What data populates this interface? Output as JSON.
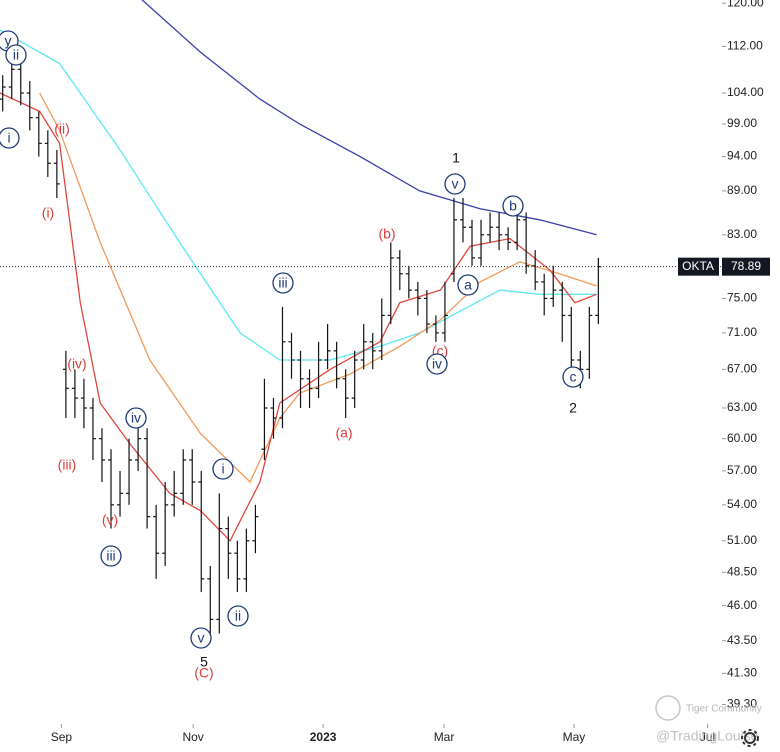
{
  "chart_data": {
    "type": "ohlc",
    "ticker": "OKTA",
    "log_scale": true,
    "bar_color": "#111111",
    "xlim": [
      0,
      80
    ],
    "ylim": [
      38.1,
      120.6
    ],
    "xticks": [
      {
        "value": 6.8,
        "label": "Sep"
      },
      {
        "value": 21.4,
        "label": "Nov"
      },
      {
        "value": 35.8,
        "label": "2023"
      },
      {
        "value": 49.2,
        "label": "Mar"
      },
      {
        "value": 63.6,
        "label": "May"
      },
      {
        "value": 78.4,
        "label": "Jul"
      }
    ],
    "yticks": [
      {
        "value": 120,
        "label": "120.00"
      },
      {
        "value": 112,
        "label": "112.00"
      },
      {
        "value": 104,
        "label": "104.00"
      },
      {
        "value": 99,
        "label": "99.00"
      },
      {
        "value": 94,
        "label": "94.00"
      },
      {
        "value": 89,
        "label": "89.00"
      },
      {
        "value": 83,
        "label": "83.00"
      },
      {
        "value": 75,
        "label": "75.00"
      },
      {
        "value": 71,
        "label": "71.00"
      },
      {
        "value": 67,
        "label": "67.00"
      },
      {
        "value": 63,
        "label": "63.00"
      },
      {
        "value": 60,
        "label": "60.00"
      },
      {
        "value": 57,
        "label": "57.00"
      },
      {
        "value": 54,
        "label": "54.00"
      },
      {
        "value": 51,
        "label": "51.00"
      },
      {
        "value": 48.5,
        "label": "48.50"
      },
      {
        "value": 46,
        "label": "46.00"
      },
      {
        "value": 43.5,
        "label": "43.50"
      },
      {
        "value": 41.3,
        "label": "41.30"
      },
      {
        "value": 39.3,
        "label": "39.30"
      }
    ],
    "bars": [
      [
        103,
        107,
        101,
        105
      ],
      [
        105,
        111,
        103,
        108
      ],
      [
        108,
        110,
        102,
        104
      ],
      [
        104,
        106,
        98,
        100
      ],
      [
        100,
        101,
        94,
        96
      ],
      [
        96,
        98,
        91,
        93
      ],
      [
        93,
        95,
        88,
        90
      ],
      [
        67,
        69,
        62,
        65
      ],
      [
        65,
        67,
        62,
        64
      ],
      [
        64,
        66,
        61,
        63
      ],
      [
        63,
        64,
        58,
        60
      ],
      [
        60,
        61,
        56,
        58
      ],
      [
        58,
        59,
        52,
        54
      ],
      [
        54,
        57,
        53,
        55
      ],
      [
        55,
        60,
        54,
        58
      ],
      [
        58,
        62,
        57,
        60
      ],
      [
        60,
        61,
        52,
        53
      ],
      [
        53,
        54,
        48,
        50
      ],
      [
        50,
        56,
        49,
        54
      ],
      [
        54,
        57,
        53,
        55
      ],
      [
        55,
        59,
        54,
        58
      ],
      [
        58,
        59,
        54,
        56
      ],
      [
        56,
        57,
        47,
        48
      ],
      [
        48,
        49,
        44,
        45
      ],
      [
        45,
        55,
        44,
        52
      ],
      [
        52,
        53,
        48,
        50
      ],
      [
        50,
        51,
        47,
        48
      ],
      [
        48,
        52,
        47,
        51
      ],
      [
        51,
        54,
        50,
        53
      ],
      [
        59,
        66,
        58,
        63
      ],
      [
        63,
        64,
        60,
        62
      ],
      [
        62,
        74,
        61,
        70
      ],
      [
        70,
        71,
        66,
        68
      ],
      [
        68,
        69,
        63,
        66
      ],
      [
        66,
        67,
        63,
        65
      ],
      [
        65,
        70,
        64,
        68
      ],
      [
        68,
        72,
        67,
        69
      ],
      [
        69,
        70,
        65,
        66
      ],
      [
        66,
        67,
        62,
        64
      ],
      [
        64,
        69,
        63,
        68
      ],
      [
        68,
        72,
        67,
        70
      ],
      [
        70,
        71,
        67,
        69
      ],
      [
        69,
        75,
        68,
        73
      ],
      [
        73,
        82,
        72,
        80
      ],
      [
        80,
        81,
        76,
        78
      ],
      [
        78,
        79,
        75,
        76
      ],
      [
        76,
        77,
        73,
        75
      ],
      [
        75,
        76,
        71,
        72
      ],
      [
        72,
        73,
        70,
        71
      ],
      [
        71,
        77,
        70,
        73
      ],
      [
        78,
        88,
        77,
        85
      ],
      [
        85,
        88,
        82,
        84
      ],
      [
        84,
        85,
        79,
        80
      ],
      [
        80,
        85,
        79,
        83
      ],
      [
        83,
        86,
        82,
        84
      ],
      [
        84,
        86,
        81,
        83
      ],
      [
        83,
        84,
        81,
        82
      ],
      [
        82,
        87,
        81,
        85
      ],
      [
        85,
        86,
        78,
        79
      ],
      [
        79,
        81,
        76,
        77
      ],
      [
        77,
        78,
        73,
        75
      ],
      [
        75,
        79,
        74,
        76
      ],
      [
        76,
        77,
        70,
        73
      ],
      [
        73,
        74,
        66,
        68
      ],
      [
        68,
        69,
        65,
        67
      ],
      [
        67,
        74,
        66,
        73
      ],
      [
        73,
        80,
        72,
        78.89
      ]
    ],
    "series": [
      {
        "color": "#3a3fa8",
        "x": [
          15.5,
          22.2,
          28.8,
          33.2,
          39.9,
          46.5,
          53.2,
          59.8,
          66.1
        ],
        "values": [
          121,
          111,
          103,
          99,
          94,
          89,
          86.5,
          85,
          83
        ]
      },
      {
        "color": "#5ee8f0",
        "x": [
          0,
          6.6,
          13.3,
          19.9,
          26.6,
          31,
          36.6,
          42.1,
          46.5,
          51,
          55.4,
          59.8,
          66.1
        ],
        "values": [
          115,
          109,
          95,
          82,
          71,
          68,
          68,
          69.5,
          71,
          73.5,
          76,
          75.5,
          75.5
        ]
      },
      {
        "color": "#f29a5a",
        "x": [
          4.4,
          6.6,
          11.1,
          16.6,
          22.2,
          27.7,
          31,
          33.2,
          38.8,
          44.3,
          48.8,
          53.2,
          57.6,
          62,
          66.1
        ],
        "values": [
          104,
          98,
          82,
          68,
          60.5,
          56,
          62,
          64.5,
          66.5,
          69.5,
          72.5,
          77,
          79.5,
          78,
          76.5
        ]
      },
      {
        "color": "#e0453f",
        "x": [
          0,
          4.4,
          6.6,
          8.9,
          11.1,
          14.4,
          18.8,
          22.2,
          25.5,
          28.8,
          31,
          36.6,
          42.1,
          44.3,
          48.8,
          52.1,
          56.5,
          60.9,
          63.7,
          66.1
        ],
        "values": [
          104,
          101,
          96,
          74.5,
          63.5,
          59.5,
          55,
          53.5,
          51,
          56,
          63.5,
          67,
          70,
          74.5,
          76,
          81.5,
          82.5,
          78.5,
          74.5,
          75.5
        ]
      }
    ],
    "annotations": [
      {
        "text": "y",
        "color": "#1e3a78"
      },
      {
        "text": "ii",
        "color": "#1e3a78"
      },
      {
        "text": "i",
        "color": "#1e3a78"
      },
      {
        "text": "(ii)",
        "color": "#d63c3c"
      },
      {
        "text": "(i)",
        "color": "#d63c3c"
      },
      {
        "text": "(iv)",
        "color": "#d63c3c"
      },
      {
        "text": "(iii)",
        "color": "#d63c3c"
      },
      {
        "text": "iv",
        "color": "#1e3a78"
      },
      {
        "text": "(v)",
        "color": "#d63c3c"
      },
      {
        "text": "iii",
        "color": "#1e3a78"
      },
      {
        "text": "i",
        "color": "#1e3a78"
      },
      {
        "text": "ii",
        "color": "#1e3a78"
      },
      {
        "text": "v",
        "color": "#1e3a78"
      },
      {
        "text": "5",
        "color": "#111111"
      },
      {
        "text": "(C)",
        "color": "#d63c3c"
      },
      {
        "text": "iii",
        "color": "#1e3a78"
      },
      {
        "text": "(a)",
        "color": "#d63c3c"
      },
      {
        "text": "(b)",
        "color": "#d63c3c"
      },
      {
        "text": "(c)",
        "color": "#d63c3c"
      },
      {
        "text": "iv",
        "color": "#1e3a78"
      },
      {
        "text": "1",
        "color": "#111111"
      },
      {
        "text": "v",
        "color": "#1e3a78"
      },
      {
        "text": "a",
        "color": "#1e3a78"
      },
      {
        "text": "b",
        "color": "#1e3a78"
      },
      {
        "text": "c",
        "color": "#1e3a78"
      },
      {
        "text": "2",
        "color": "#111111"
      }
    ],
    "watermark": {
      "brand": "Tiger Community",
      "author": "@TradingLouise"
    }
  }
}
